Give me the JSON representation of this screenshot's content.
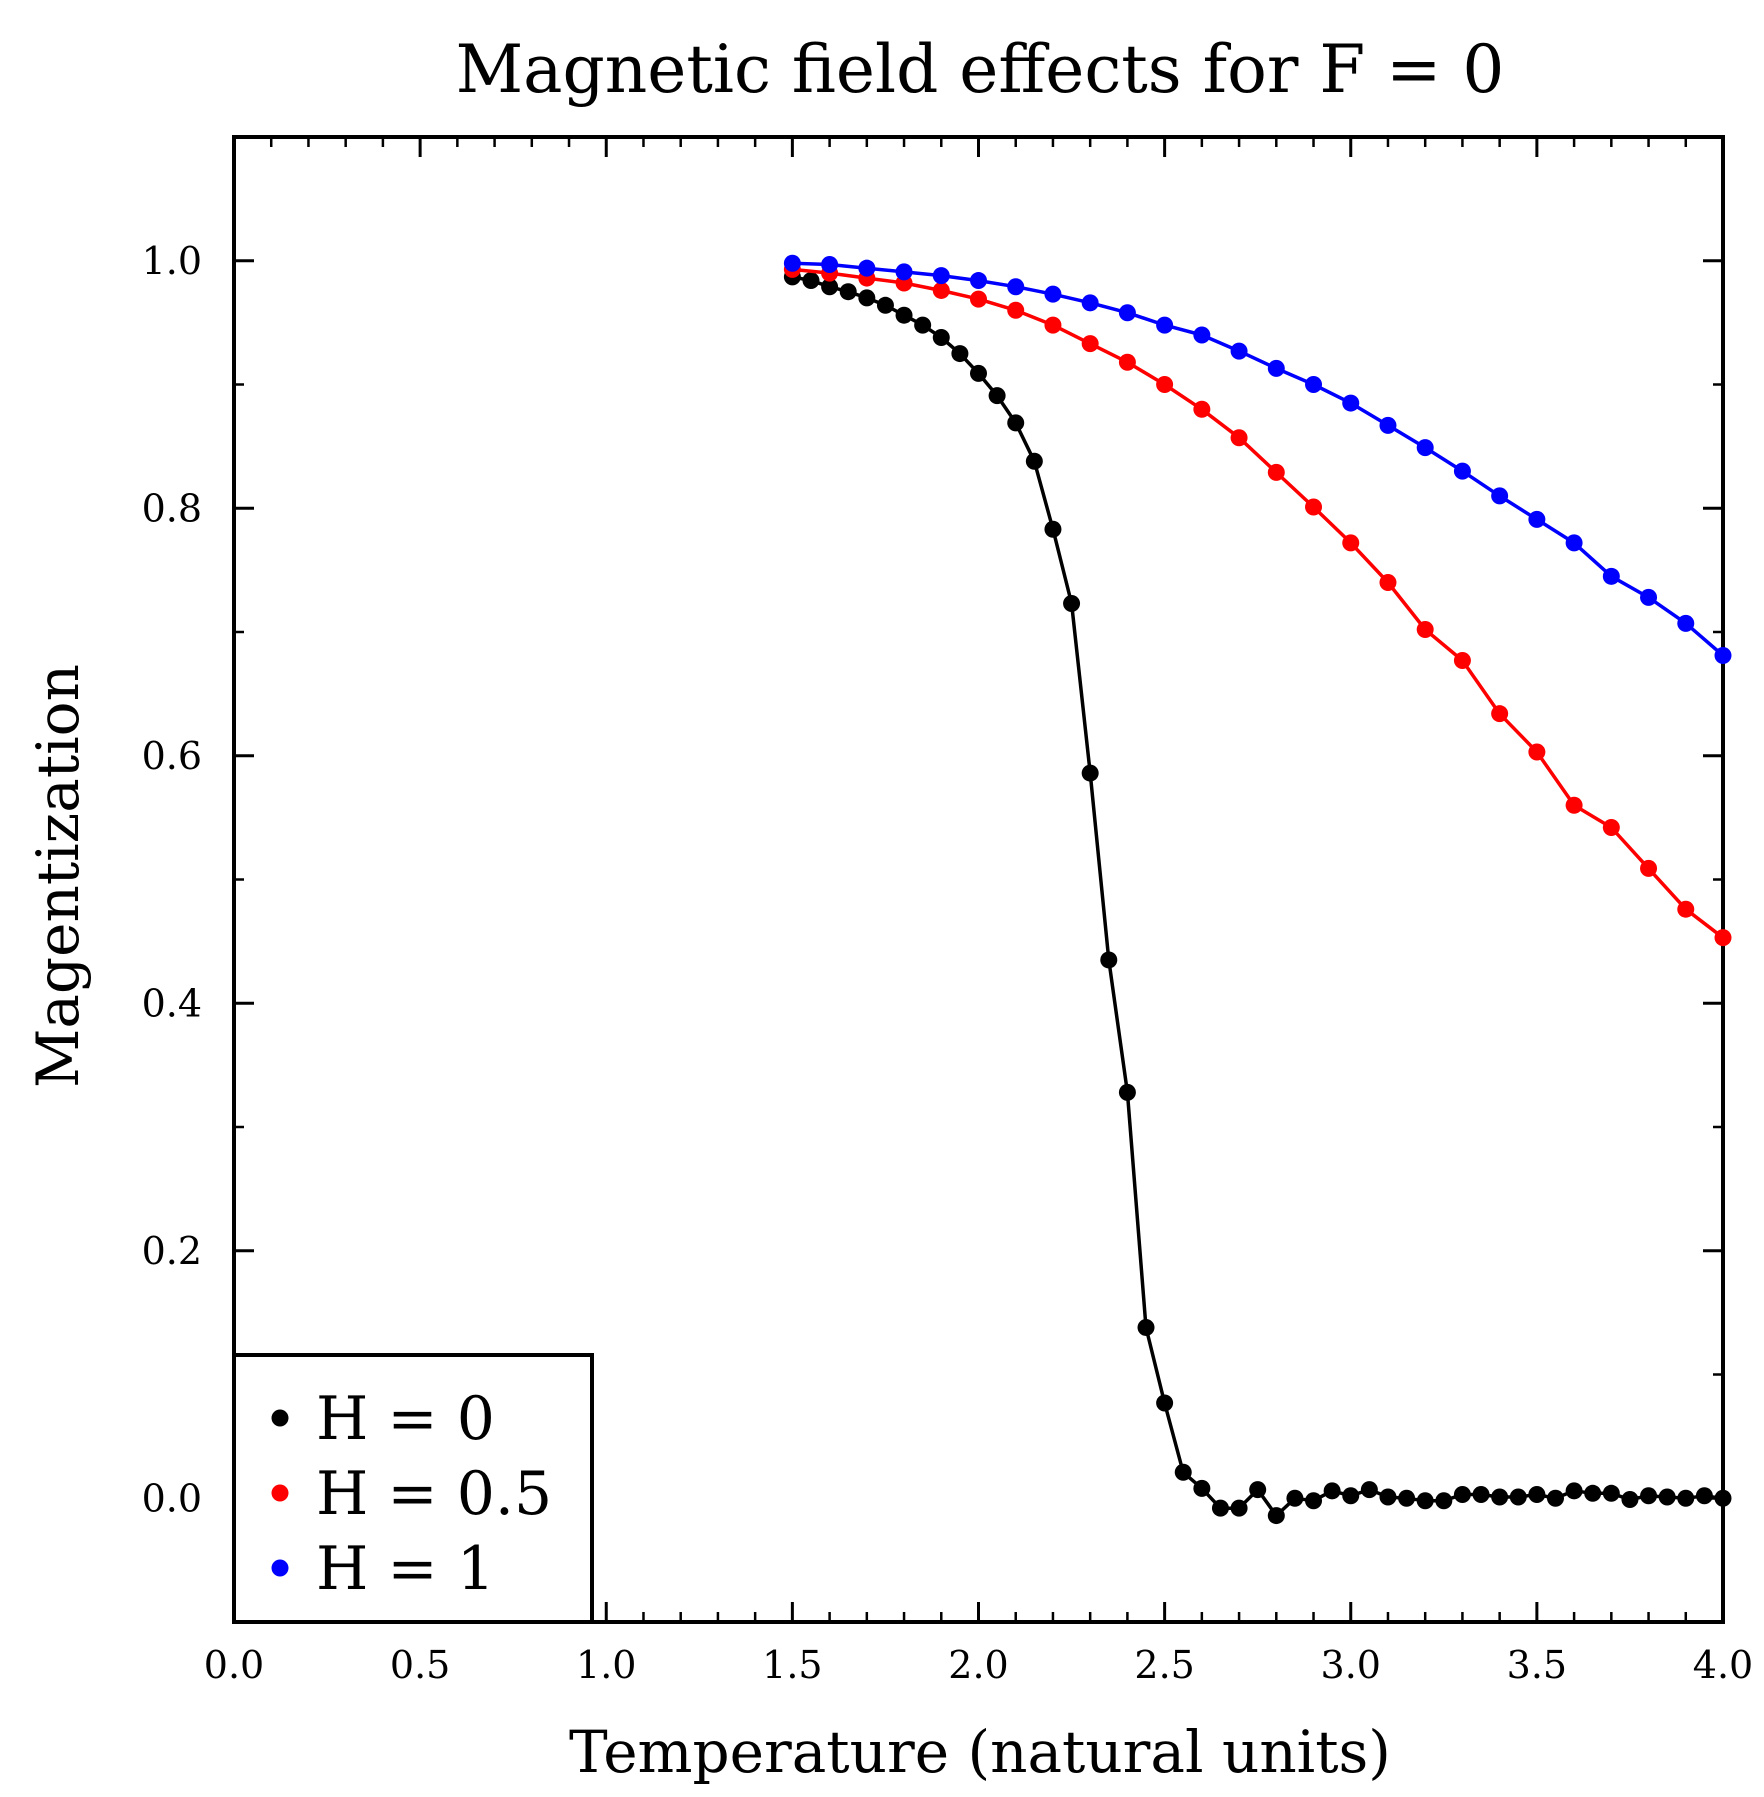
{
  "chart_data": {
    "type": "line",
    "title": "Magnetic field effects for F = 0",
    "xlabel": "Temperature (natural units)",
    "ylabel": "Magentization",
    "xlim": [
      0.0,
      4.0
    ],
    "ylim": [
      -0.1,
      1.1
    ],
    "x_ticks": [
      "0.0",
      "0.5",
      "1.0",
      "1.5",
      "2.0",
      "2.5",
      "3.0",
      "3.5",
      "4.0"
    ],
    "y_ticks": [
      "0.0",
      "0.2",
      "0.4",
      "0.6",
      "0.8",
      "1.0"
    ],
    "legend_position": "bottom-left",
    "grid": false,
    "series": [
      {
        "name": "H = 0",
        "color": "#000000",
        "x": [
          1.5,
          1.55,
          1.6,
          1.65,
          1.7,
          1.75,
          1.8,
          1.85,
          1.9,
          1.95,
          2.0,
          2.05,
          2.1,
          2.15,
          2.2,
          2.25,
          2.3,
          2.35,
          2.4,
          2.45,
          2.5,
          2.55,
          2.6,
          2.65,
          2.7,
          2.75,
          2.8,
          2.85,
          2.9,
          2.95,
          3.0,
          3.05,
          3.1,
          3.15,
          3.2,
          3.25,
          3.3,
          3.35,
          3.4,
          3.45,
          3.5,
          3.55,
          3.6,
          3.65,
          3.7,
          3.75,
          3.8,
          3.85,
          3.9,
          3.95,
          4.0
        ],
        "y": [
          0.987,
          0.984,
          0.979,
          0.975,
          0.97,
          0.964,
          0.956,
          0.948,
          0.938,
          0.925,
          0.909,
          0.891,
          0.869,
          0.838,
          0.783,
          0.723,
          0.586,
          0.435,
          0.328,
          0.138,
          0.077,
          0.021,
          0.008,
          -0.008,
          -0.008,
          0.007,
          -0.014,
          0.0,
          -0.002,
          0.006,
          0.002,
          0.007,
          0.001,
          0.0,
          -0.002,
          -0.002,
          0.003,
          0.003,
          0.001,
          0.001,
          0.003,
          0.0,
          0.006,
          0.004,
          0.004,
          -0.001,
          0.002,
          0.001,
          0.0,
          0.002,
          0.0
        ]
      },
      {
        "name": "H = 0.5",
        "color": "#ff0000",
        "x": [
          1.5,
          1.6,
          1.7,
          1.8,
          1.9,
          2.0,
          2.1,
          2.2,
          2.3,
          2.4,
          2.5,
          2.6,
          2.7,
          2.8,
          2.9,
          3.0,
          3.1,
          3.2,
          3.3,
          3.4,
          3.5,
          3.6,
          3.7,
          3.8,
          3.9,
          4.0
        ],
        "y": [
          0.993,
          0.99,
          0.986,
          0.982,
          0.976,
          0.969,
          0.96,
          0.948,
          0.933,
          0.918,
          0.9,
          0.88,
          0.857,
          0.829,
          0.801,
          0.772,
          0.74,
          0.702,
          0.677,
          0.634,
          0.603,
          0.56,
          0.542,
          0.509,
          0.476,
          0.453
        ]
      },
      {
        "name": "H = 1",
        "color": "#0000ff",
        "x": [
          1.5,
          1.6,
          1.7,
          1.8,
          1.9,
          2.0,
          2.1,
          2.2,
          2.3,
          2.4,
          2.5,
          2.6,
          2.7,
          2.8,
          2.9,
          3.0,
          3.1,
          3.2,
          3.3,
          3.4,
          3.5,
          3.6,
          3.7,
          3.8,
          3.9,
          4.0
        ],
        "y": [
          0.998,
          0.997,
          0.994,
          0.991,
          0.988,
          0.984,
          0.979,
          0.973,
          0.966,
          0.958,
          0.948,
          0.94,
          0.927,
          0.913,
          0.9,
          0.885,
          0.867,
          0.849,
          0.83,
          0.81,
          0.791,
          0.772,
          0.745,
          0.728,
          0.707,
          0.681
        ]
      }
    ]
  }
}
